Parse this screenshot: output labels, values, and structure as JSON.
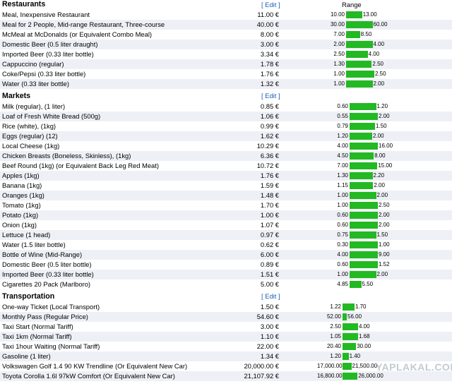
{
  "range_header": "Range",
  "edit_label": "[ Edit ]",
  "bar_color": "#22b922",
  "watermark": "YAPLAKAL.COM",
  "sections": [
    {
      "title": "Restaurants",
      "items": [
        {
          "name": "Meal, Inexpensive Restaurant",
          "price": "11.00 €",
          "min": "10.00",
          "max": "13.00"
        },
        {
          "name": "Meal for 2 People, Mid-range Restaurant, Three-course",
          "price": "40.00 €",
          "min": "30.00",
          "max": "60.00"
        },
        {
          "name": "McMeal at McDonalds (or Equivalent Combo Meal)",
          "price": "8.00 €",
          "min": "7.00",
          "max": "8.50"
        },
        {
          "name": "Domestic Beer (0.5 liter draught)",
          "price": "3.00 €",
          "min": "2.00",
          "max": "4.00"
        },
        {
          "name": "Imported Beer (0.33 liter bottle)",
          "price": "3.34 €",
          "min": "2.50",
          "max": "4.00"
        },
        {
          "name": "Cappuccino (regular)",
          "price": "1.78 €",
          "min": "1.30",
          "max": "2.50"
        },
        {
          "name": "Coke/Pepsi (0.33 liter bottle)",
          "price": "1.76 €",
          "min": "1.00",
          "max": "2.50"
        },
        {
          "name": "Water (0.33 liter bottle)",
          "price": "1.32 €",
          "min": "1.00",
          "max": "2.00"
        }
      ]
    },
    {
      "title": "Markets",
      "items": [
        {
          "name": "Milk (regular), (1 liter)",
          "price": "0.85 €",
          "min": "0.60",
          "max": "1.20"
        },
        {
          "name": "Loaf of Fresh White Bread (500g)",
          "price": "1.06 €",
          "min": "0.55",
          "max": "2.00"
        },
        {
          "name": "Rice (white), (1kg)",
          "price": "0.99 €",
          "min": "0.79",
          "max": "1.50"
        },
        {
          "name": "Eggs (regular) (12)",
          "price": "1.62 €",
          "min": "1.20",
          "max": "2.00"
        },
        {
          "name": "Local Cheese (1kg)",
          "price": "10.29 €",
          "min": "4.00",
          "max": "16.00"
        },
        {
          "name": "Chicken Breasts (Boneless, Skinless), (1kg)",
          "price": "6.36 €",
          "min": "4.50",
          "max": "8.00"
        },
        {
          "name": "Beef Round (1kg) (or Equivalent Back Leg Red Meat)",
          "price": "10.72 €",
          "min": "7.00",
          "max": "15.00"
        },
        {
          "name": "Apples (1kg)",
          "price": "1.76 €",
          "min": "1.30",
          "max": "2.20"
        },
        {
          "name": "Banana (1kg)",
          "price": "1.59 €",
          "min": "1.15",
          "max": "2.00"
        },
        {
          "name": "Oranges (1kg)",
          "price": "1.48 €",
          "min": "1.00",
          "max": "2.00"
        },
        {
          "name": "Tomato (1kg)",
          "price": "1.70 €",
          "min": "1.00",
          "max": "2.50"
        },
        {
          "name": "Potato (1kg)",
          "price": "1.00 €",
          "min": "0.60",
          "max": "2.00"
        },
        {
          "name": "Onion (1kg)",
          "price": "1.07 €",
          "min": "0.60",
          "max": "2.00"
        },
        {
          "name": "Lettuce (1 head)",
          "price": "0.97 €",
          "min": "0.75",
          "max": "1.50"
        },
        {
          "name": "Water (1.5 liter bottle)",
          "price": "0.62 €",
          "min": "0.30",
          "max": "1.00"
        },
        {
          "name": "Bottle of Wine (Mid-Range)",
          "price": "6.00 €",
          "min": "4.00",
          "max": "9.00"
        },
        {
          "name": "Domestic Beer (0.5 liter bottle)",
          "price": "0.89 €",
          "min": "0.60",
          "max": "1.52"
        },
        {
          "name": "Imported Beer (0.33 liter bottle)",
          "price": "1.51 €",
          "min": "1.00",
          "max": "2.00"
        },
        {
          "name": "Cigarettes 20 Pack (Marlboro)",
          "price": "5.00 €",
          "min": "4.85",
          "max": "5.50"
        }
      ]
    },
    {
      "title": "Transportation",
      "items": [
        {
          "name": "One-way Ticket (Local Transport)",
          "price": "1.50 €",
          "min": "1.22",
          "max": "1.70"
        },
        {
          "name": "Monthly Pass (Regular Price)",
          "price": "54.60 €",
          "min": "52.00",
          "max": "56.00"
        },
        {
          "name": "Taxi Start (Normal Tariff)",
          "price": "3.00 €",
          "min": "2.50",
          "max": "4.00"
        },
        {
          "name": "Taxi 1km (Normal Tariff)",
          "price": "1.10 €",
          "min": "1.05",
          "max": "1.68"
        },
        {
          "name": "Taxi 1hour Waiting (Normal Tariff)",
          "price": "22.00 €",
          "min": "20.40",
          "max": "30.00"
        },
        {
          "name": "Gasoline (1 liter)",
          "price": "1.34 €",
          "min": "1.20",
          "max": "1.40"
        },
        {
          "name": "Volkswagen Golf 1.4 90 KW Trendline (Or Equivalent New Car)",
          "price": "20,000.00 €",
          "min": "17,000.00",
          "max": "21,500.00"
        },
        {
          "name": "Toyota Corolla 1.6l 97kW Comfort (Or Equivalent New Car)",
          "price": "21,107.92 €",
          "min": "16,800.00",
          "max": "26,000.00"
        }
      ]
    }
  ]
}
